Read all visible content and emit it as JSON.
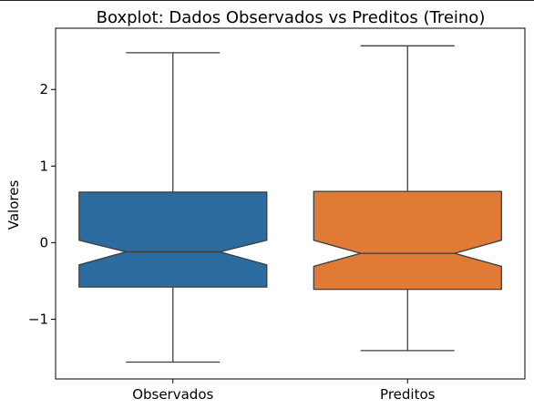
{
  "chart_data": {
    "type": "boxplot",
    "title": "Boxplot: Dados Observados vs Preditos (Treino)",
    "xlabel": "",
    "ylabel": "Valores",
    "ylim": [
      -1.78,
      2.8
    ],
    "yticks": [
      {
        "value": 2,
        "label": "2"
      },
      {
        "value": 1,
        "label": "1"
      },
      {
        "value": 0,
        "label": "0"
      },
      {
        "value": -1,
        "label": "−1"
      }
    ],
    "notched": true,
    "grid": false,
    "categories": [
      "Observados",
      "Preditos"
    ],
    "boxes": [
      {
        "category": "Observados",
        "color": "#2c6b9f",
        "whisker_low": -1.56,
        "q1": -0.58,
        "median": -0.12,
        "q3": 0.66,
        "whisker_high": 2.48,
        "notch_low": -0.29,
        "notch_high": 0.03
      },
      {
        "category": "Preditos",
        "color": "#e07a34",
        "whisker_low": -1.41,
        "q1": -0.61,
        "median": -0.14,
        "q3": 0.67,
        "whisker_high": 2.57,
        "notch_low": -0.31,
        "notch_high": 0.03
      }
    ]
  }
}
